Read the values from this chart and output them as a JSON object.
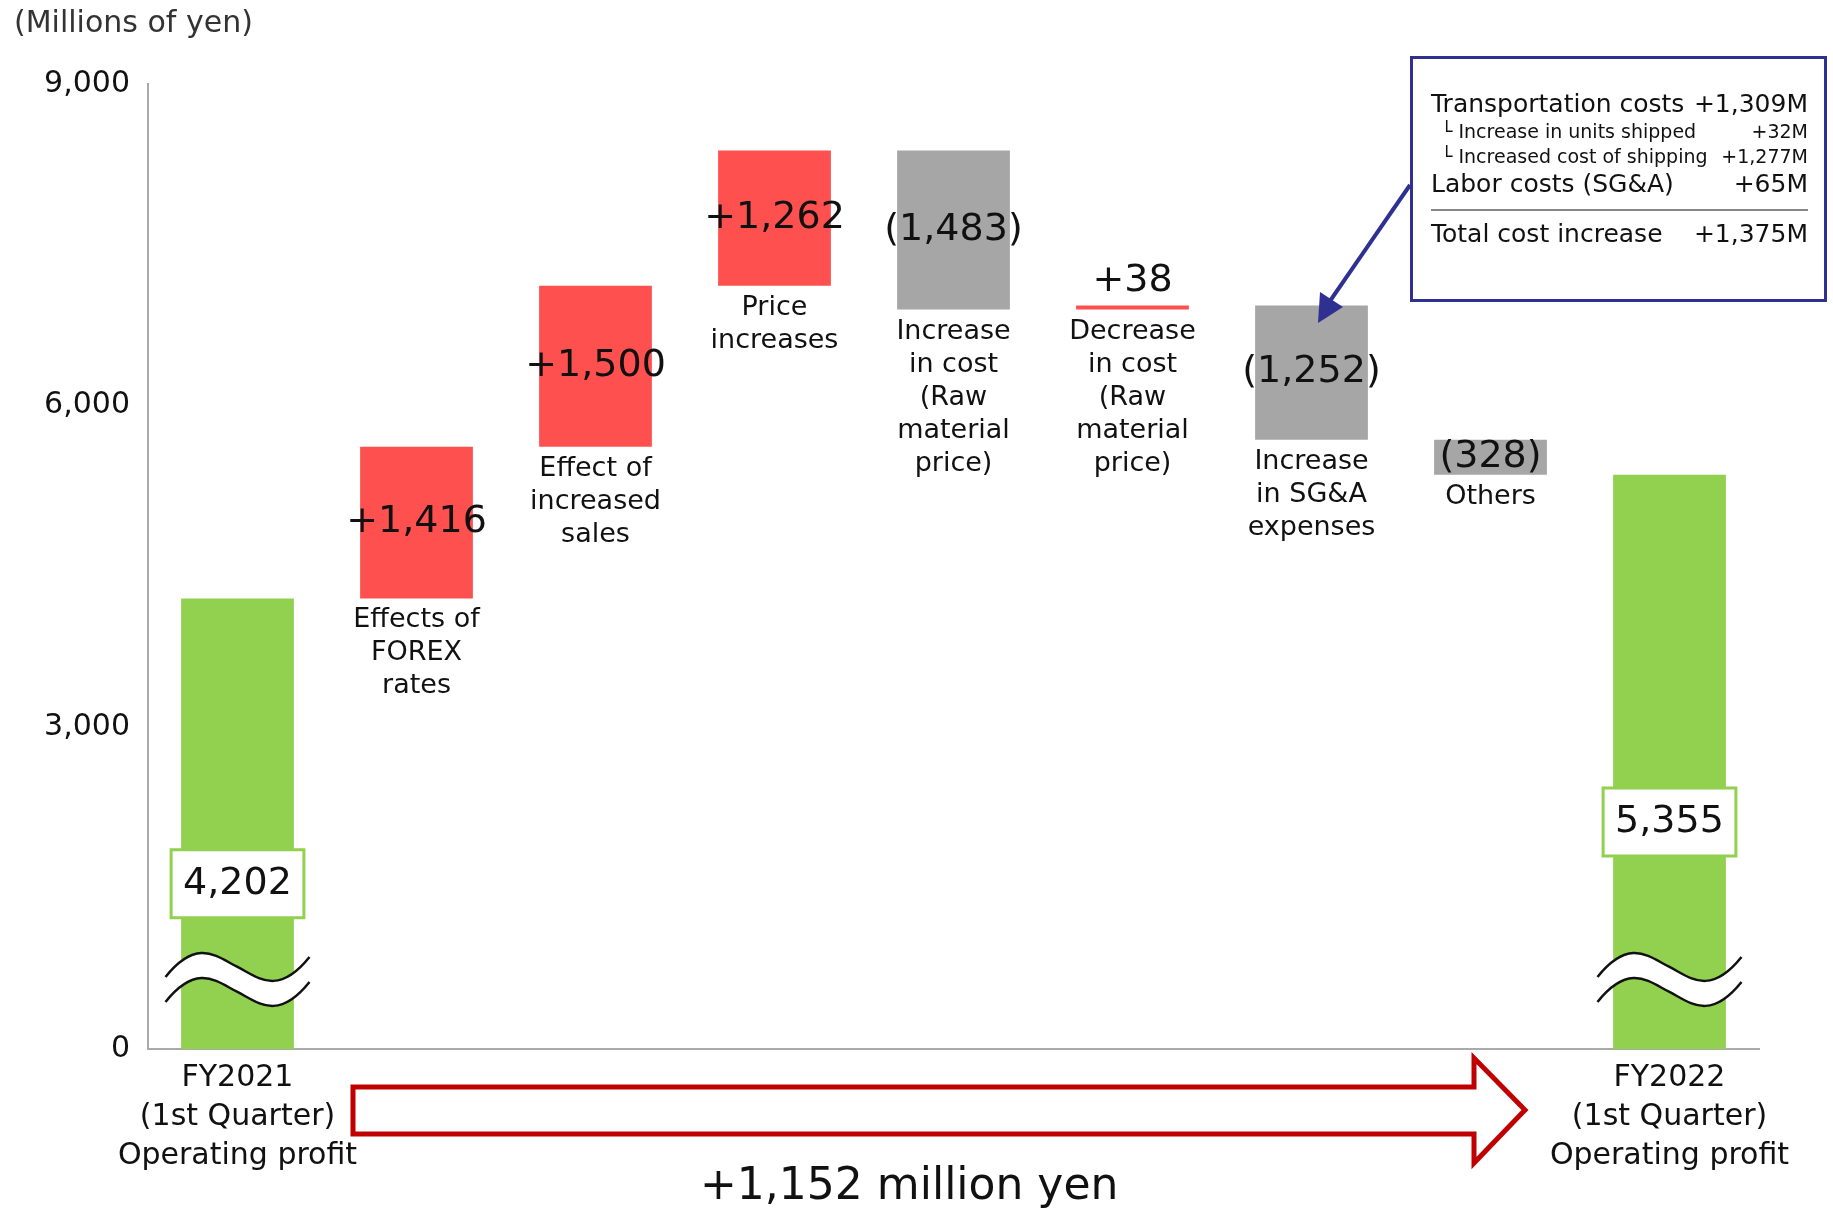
{
  "chart_data": {
    "type": "bar",
    "ylabel": "(Millions of yen)",
    "categories": [
      "FY2021\n(1st Quarter)\nOperating profit",
      "Effects of\nFOREX\nrates",
      "Effect of\nincreased\nsales",
      "Price\nincreases",
      "Increase\nin cost\n(Raw\nmaterial\nprice)",
      "Decrease\nin cost\n(Raw\nmaterial\nprice)",
      "Increase\nin SG&A\nexpenses",
      "Others",
      "FY2022\n(1st Quarter)\nOperating profit"
    ],
    "values": [
      4202,
      1416,
      1500,
      1262,
      -1483,
      38,
      -1252,
      -328,
      5355
    ],
    "base": [
      0,
      4202,
      5618,
      7118,
      8380,
      6897,
      6935,
      5683,
      0
    ],
    "colors": [
      "#92d050",
      "#ff5050",
      "#ff5050",
      "#ff5050",
      "#a6a6a6",
      "#ff5050",
      "#a6a6a6",
      "#a6a6a6",
      "#92d050"
    ],
    "value_labels": [
      "4,202",
      "+1,416",
      "+1,500",
      "+1,262",
      "(1,483)",
      "+38",
      "(1,252)",
      "(328)",
      "5,355"
    ],
    "ylim": [
      0,
      9000
    ],
    "yticks": [
      {
        "value": 0,
        "label": "0"
      },
      {
        "value": 3000,
        "label": "3,000"
      },
      {
        "value": 6000,
        "label": "6,000"
      },
      {
        "value": 9000,
        "label": "9,000"
      }
    ],
    "grid": false,
    "annotations": [
      "+1,152 million yen",
      "Transportation costs",
      "+1,309M",
      "└ Increase in units shipped",
      "+32M",
      "└ Increased cost of shipping",
      "+1,277M",
      "Labor costs (SG&A)",
      "+65M",
      "Total cost increase",
      "+1,375M"
    ]
  }
}
